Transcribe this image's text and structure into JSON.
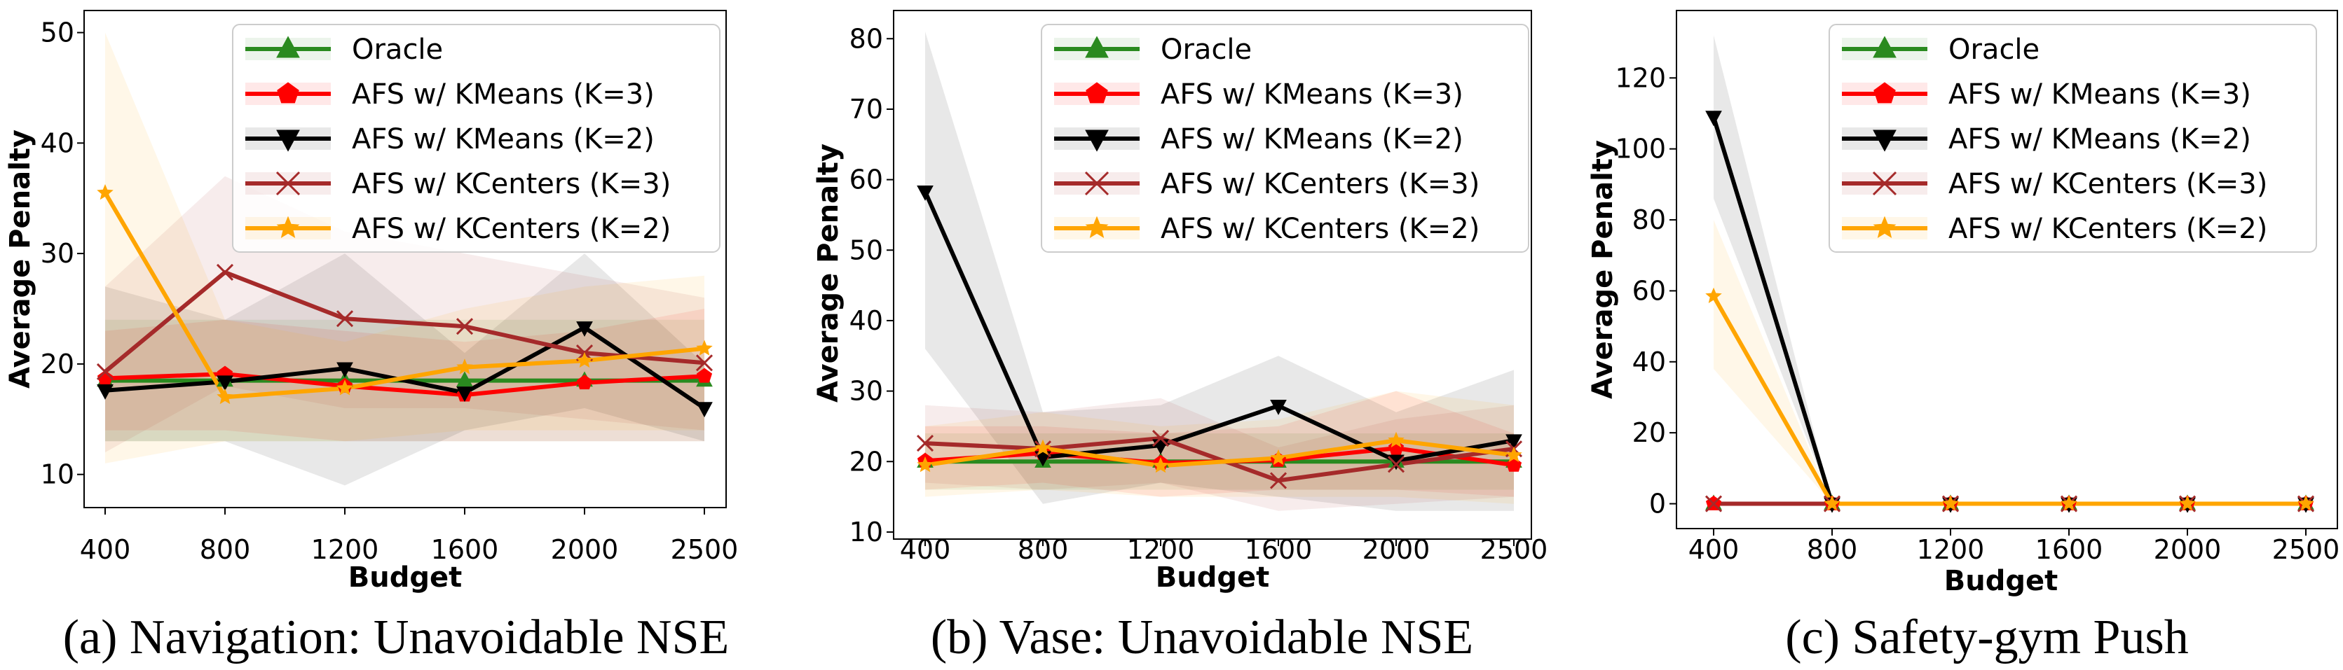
{
  "chart_data": [
    {
      "type": "line",
      "caption": "(a) Navigation: Unavoidable NSE",
      "xlabel": "Budget",
      "ylabel": "Average Penalty",
      "categories": [
        "400",
        "800",
        "1200",
        "1600",
        "2000",
        "2500"
      ],
      "ylim": [
        7,
        52
      ],
      "yticks": [
        10,
        20,
        30,
        40,
        50
      ],
      "legend_position": "top-right",
      "series": [
        {
          "name": "Oracle",
          "color": "#2a8a1f",
          "marker": "triangle-up",
          "values": [
            18.5,
            18.5,
            18.5,
            18.5,
            18.5,
            18.5
          ],
          "lower": [
            13,
            13,
            13,
            13,
            13,
            13
          ],
          "upper": [
            24,
            24,
            24,
            24,
            24,
            24
          ]
        },
        {
          "name": "AFS w/ KMeans (K=3)",
          "color": "#ff0000",
          "marker": "pentagon",
          "values": [
            18.7,
            19.1,
            18,
            17.2,
            18.3,
            18.9
          ],
          "lower": [
            14,
            14,
            13,
            13,
            13,
            13
          ],
          "upper": [
            23,
            24,
            23,
            22,
            23,
            25
          ]
        },
        {
          "name": "AFS w/ KMeans (K=2)",
          "color": "#000000",
          "marker": "triangle-down",
          "values": [
            17.6,
            18.4,
            19.6,
            17.4,
            23.3,
            16
          ],
          "lower": [
            13,
            13,
            9,
            14,
            16,
            13
          ],
          "upper": [
            27,
            24,
            30,
            21,
            30,
            20
          ]
        },
        {
          "name": "AFS w/ KCenters (K=3)",
          "color": "#a52a2a",
          "marker": "x",
          "values": [
            19.3,
            28.3,
            24.1,
            23.4,
            21,
            20.1
          ],
          "lower": [
            12,
            18,
            16,
            16,
            15,
            14
          ],
          "upper": [
            27,
            37,
            32,
            30,
            28,
            26
          ]
        },
        {
          "name": "AFS w/ KCenters (K=2)",
          "color": "#ffa500",
          "marker": "star",
          "values": [
            35.5,
            17,
            17.8,
            19.7,
            20.3,
            21.4
          ],
          "lower": [
            11,
            13,
            13,
            14,
            14,
            14
          ],
          "upper": [
            50,
            24,
            22,
            25,
            27,
            28
          ]
        }
      ]
    },
    {
      "type": "line",
      "caption": "(b) Vase: Unavoidable NSE",
      "xlabel": "Budget",
      "ylabel": "Average Penalty",
      "categories": [
        "400",
        "800",
        "1200",
        "1600",
        "2000",
        "2500"
      ],
      "ylim": [
        9,
        84
      ],
      "yticks": [
        10,
        20,
        30,
        40,
        50,
        60,
        70,
        80
      ],
      "legend_position": "top-right",
      "series": [
        {
          "name": "Oracle",
          "color": "#2a8a1f",
          "marker": "triangle-up",
          "values": [
            20,
            20,
            20,
            20,
            20,
            20
          ],
          "lower": [
            16,
            16,
            16,
            16,
            16,
            16
          ],
          "upper": [
            24,
            24,
            24,
            24,
            24,
            24
          ]
        },
        {
          "name": "AFS w/ KMeans (K=3)",
          "color": "#ff0000",
          "marker": "pentagon",
          "values": [
            20.1,
            21.2,
            19.8,
            20.2,
            21.9,
            19.5
          ],
          "lower": [
            16,
            17,
            15,
            16,
            16,
            15
          ],
          "upper": [
            25,
            25,
            24,
            25,
            30,
            24
          ]
        },
        {
          "name": "AFS w/ KMeans (K=2)",
          "color": "#000000",
          "marker": "triangle-down",
          "values": [
            58.3,
            20.6,
            22.3,
            27.9,
            20.1,
            23
          ],
          "lower": [
            36,
            14,
            17,
            15,
            13,
            13
          ],
          "upper": [
            81,
            27,
            28,
            35,
            27,
            33
          ]
        },
        {
          "name": "AFS w/ KCenters (K=3)",
          "color": "#a52a2a",
          "marker": "x",
          "values": [
            22.6,
            21.8,
            23.3,
            17.3,
            19.6,
            21.8
          ],
          "lower": [
            17,
            16,
            17,
            13,
            14,
            15
          ],
          "upper": [
            28,
            27,
            29,
            22,
            26,
            28
          ]
        },
        {
          "name": "AFS w/ KCenters (K=2)",
          "color": "#ffa500",
          "marker": "star",
          "values": [
            19.5,
            21.9,
            19.4,
            20.5,
            23,
            20.9
          ],
          "lower": [
            15,
            16,
            15,
            15,
            15,
            14
          ],
          "upper": [
            25,
            27,
            25,
            26,
            30,
            28
          ]
        }
      ]
    },
    {
      "type": "line",
      "caption": "(c) Safety-gym Push",
      "xlabel": "Budget",
      "ylabel": "Average Penalty",
      "categories": [
        "400",
        "800",
        "1200",
        "1600",
        "2000",
        "2500"
      ],
      "ylim": [
        -7,
        139
      ],
      "yticks": [
        0,
        20,
        40,
        60,
        80,
        100,
        120
      ],
      "legend_position": "top-right",
      "series": [
        {
          "name": "Oracle",
          "color": "#2a8a1f",
          "marker": "triangle-up",
          "values": [
            0,
            0,
            0,
            0,
            0,
            0
          ],
          "lower": [
            0,
            0,
            0,
            0,
            0,
            0
          ],
          "upper": [
            0,
            0,
            0,
            0,
            0,
            0
          ]
        },
        {
          "name": "AFS w/ KMeans (K=3)",
          "color": "#ff0000",
          "marker": "pentagon",
          "values": [
            0,
            0,
            0,
            0,
            0,
            0
          ],
          "lower": [
            0,
            0,
            0,
            0,
            0,
            0
          ],
          "upper": [
            0,
            0,
            0,
            0,
            0,
            0
          ]
        },
        {
          "name": "AFS w/ KMeans (K=2)",
          "color": "#000000",
          "marker": "triangle-down",
          "values": [
            109,
            0,
            0,
            0,
            0,
            0
          ],
          "lower": [
            86,
            0,
            0,
            0,
            0,
            0
          ],
          "upper": [
            132,
            0,
            0,
            0,
            0,
            0
          ]
        },
        {
          "name": "AFS w/ KCenters (K=3)",
          "color": "#a52a2a",
          "marker": "x",
          "values": [
            0,
            0,
            0,
            0,
            0,
            0
          ],
          "lower": [
            0,
            0,
            0,
            0,
            0,
            0
          ],
          "upper": [
            0,
            0,
            0,
            0,
            0,
            0
          ]
        },
        {
          "name": "AFS w/ KCenters (K=2)",
          "color": "#ffa500",
          "marker": "star",
          "values": [
            58.5,
            0,
            0,
            0,
            0,
            0
          ],
          "lower": [
            38,
            0,
            0,
            0,
            0,
            0
          ],
          "upper": [
            80,
            0,
            0,
            0,
            0,
            0
          ]
        }
      ]
    }
  ]
}
